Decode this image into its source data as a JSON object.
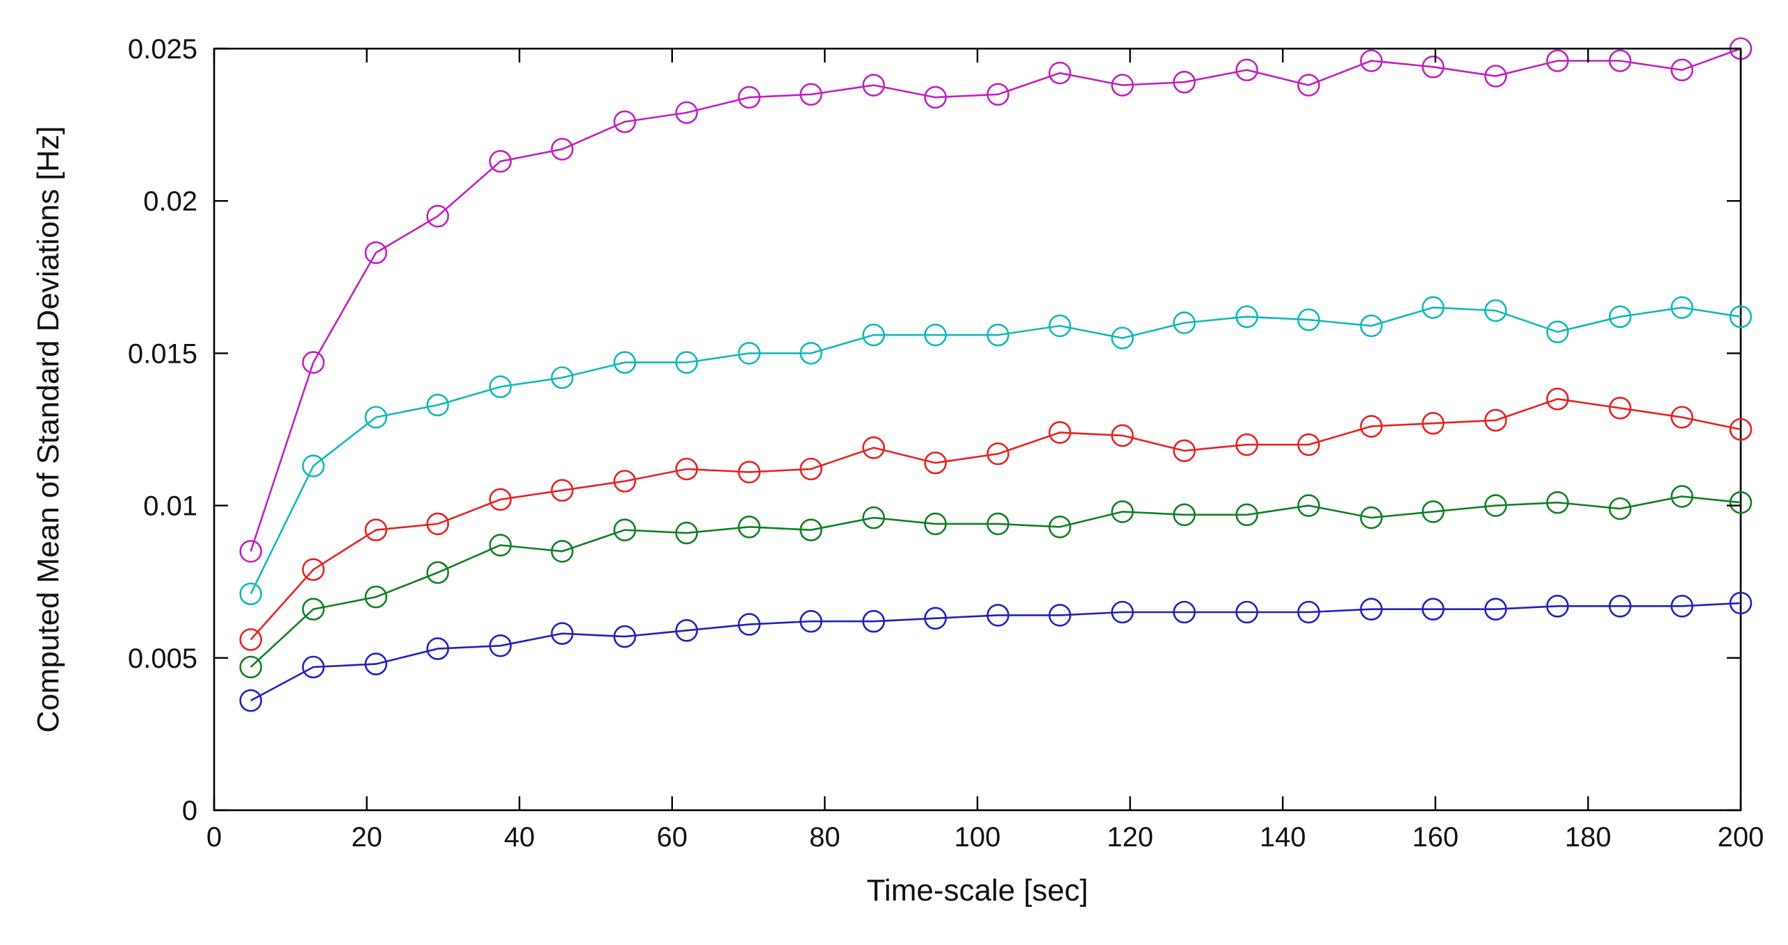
{
  "chart_data": {
    "type": "line",
    "title": "",
    "xlabel": "Time-scale [sec]",
    "ylabel": "Computed Mean of Standard Deviations [Hz]",
    "xlim": [
      0,
      200
    ],
    "ylim": [
      0,
      0.025
    ],
    "grid": false,
    "legend": "none",
    "x_ticks": [
      0,
      20,
      40,
      60,
      80,
      100,
      120,
      140,
      160,
      180,
      200
    ],
    "x_tick_labels": [
      "0",
      "20",
      "40",
      "60",
      "80",
      "100",
      "120",
      "140",
      "160",
      "180",
      "200"
    ],
    "y_ticks": [
      0,
      0.005,
      0.01,
      0.015,
      0.02,
      0.025
    ],
    "y_tick_labels": [
      "0",
      "0.005",
      "0.01",
      "0.015",
      "0.02",
      "0.025"
    ],
    "x": [
      4.8,
      13,
      21.2,
      29.3,
      37.5,
      45.6,
      53.8,
      61.9,
      70.1,
      78.2,
      86.4,
      94.5,
      102.7,
      110.8,
      119,
      127.1,
      135.3,
      143.4,
      151.6,
      159.7,
      167.9,
      176,
      184.2,
      192.3,
      200
    ],
    "series": [
      {
        "name": "magenta",
        "color": "#c020c0",
        "values": [
          0.0085,
          0.0147,
          0.0183,
          0.0195,
          0.0213,
          0.0217,
          0.0226,
          0.0229,
          0.0234,
          0.0235,
          0.0238,
          0.0234,
          0.0235,
          0.0242,
          0.0238,
          0.0239,
          0.0243,
          0.0238,
          0.0246,
          0.0244,
          0.0241,
          0.0246,
          0.0246,
          0.0243,
          0.025
        ]
      },
      {
        "name": "cyan",
        "color": "#10b8b8",
        "values": [
          0.0071,
          0.0113,
          0.0129,
          0.0133,
          0.0139,
          0.0142,
          0.0147,
          0.0147,
          0.015,
          0.015,
          0.0156,
          0.0156,
          0.0156,
          0.0159,
          0.0155,
          0.016,
          0.0162,
          0.0161,
          0.0159,
          0.0165,
          0.0164,
          0.0157,
          0.0162,
          0.0165,
          0.0162
        ]
      },
      {
        "name": "red",
        "color": "#e82020",
        "values": [
          0.0056,
          0.0079,
          0.0092,
          0.0094,
          0.0102,
          0.0105,
          0.0108,
          0.0112,
          0.0111,
          0.0112,
          0.0119,
          0.0114,
          0.0117,
          0.0124,
          0.0123,
          0.0118,
          0.012,
          0.012,
          0.0126,
          0.0127,
          0.0128,
          0.0135,
          0.0132,
          0.0129,
          0.0125
        ]
      },
      {
        "name": "green",
        "color": "#108020",
        "values": [
          0.0047,
          0.0066,
          0.007,
          0.0078,
          0.0087,
          0.0085,
          0.0092,
          0.0091,
          0.0093,
          0.0092,
          0.0096,
          0.0094,
          0.0094,
          0.0093,
          0.0098,
          0.0097,
          0.0097,
          0.01,
          0.0096,
          0.0098,
          0.01,
          0.0101,
          0.0099,
          0.0103,
          0.0101
        ]
      },
      {
        "name": "blue",
        "color": "#2020c0",
        "values": [
          0.0036,
          0.0047,
          0.0048,
          0.0053,
          0.0054,
          0.0058,
          0.0057,
          0.0059,
          0.0061,
          0.0062,
          0.0062,
          0.0063,
          0.0064,
          0.0064,
          0.0065,
          0.0065,
          0.0065,
          0.0065,
          0.0066,
          0.0066,
          0.0066,
          0.0067,
          0.0067,
          0.0067,
          0.0068
        ]
      }
    ]
  }
}
